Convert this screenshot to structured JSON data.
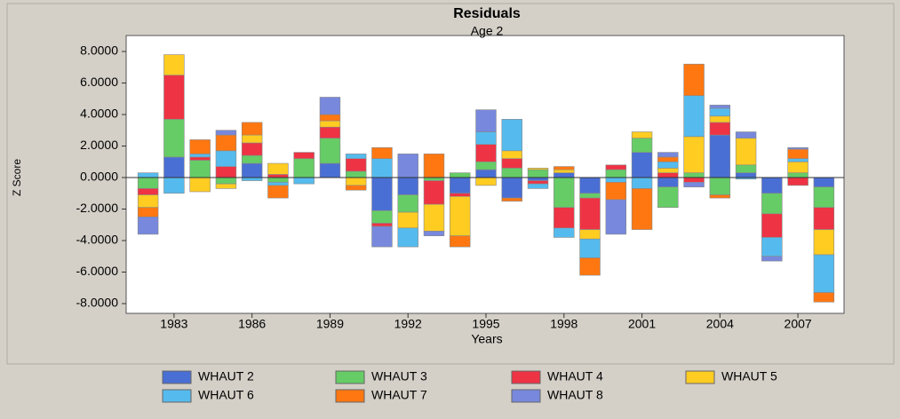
{
  "chart_data": {
    "type": "stacked-bar",
    "title": "Residuals",
    "subtitle": "Age 2",
    "x_label": "Years",
    "y_label": "Z Score",
    "categories": [
      null,
      "1983",
      null,
      null,
      "1986",
      null,
      null,
      "1989",
      null,
      null,
      "1992",
      null,
      null,
      "1995",
      null,
      null,
      "1998",
      null,
      null,
      "2001",
      null,
      null,
      "2004",
      null,
      null,
      "2007",
      null
    ],
    "series": [
      {
        "name": "WHAUT 2",
        "color": "#4a6fd4",
        "values": [
          0,
          1.3,
          0,
          0,
          0.9,
          0,
          0,
          0.9,
          0,
          -2.1,
          -1.1,
          0,
          -1.0,
          0.5,
          -1.3,
          -0.2,
          0.3,
          -1.0,
          0,
          1.6,
          -0.6,
          0,
          2.7,
          0.3,
          -1.0,
          0,
          -0.6
        ]
      },
      {
        "name": "WHAUT 3",
        "color": "#66cc66",
        "values": [
          -0.7,
          2.4,
          1.1,
          -0.4,
          0.5,
          -0.3,
          1.2,
          1.6,
          0.4,
          -0.8,
          -1.1,
          -0.2,
          0.3,
          0.5,
          0.6,
          0.5,
          -1.9,
          -0.3,
          0.5,
          0.9,
          -1.3,
          0.3,
          -1.1,
          0.5,
          -1.3,
          0.3,
          -1.3
        ]
      },
      {
        "name": "WHAUT 4",
        "color": "#ee3344",
        "values": [
          -0.4,
          2.8,
          0.2,
          0.7,
          0.8,
          0.2,
          0.4,
          0.7,
          0.8,
          -0.2,
          0,
          -1.5,
          -0.2,
          1.1,
          0.6,
          -0.2,
          -1.3,
          -2.0,
          0.3,
          0,
          0.3,
          -0.3,
          0.8,
          0,
          -1.5,
          -0.5,
          -1.4
        ]
      },
      {
        "name": "WHAUT 5",
        "color": "#ffcc22",
        "values": [
          -0.8,
          1.3,
          -0.9,
          -0.3,
          0.5,
          0.7,
          0,
          0.4,
          -0.5,
          0,
          -1.0,
          -1.7,
          -2.5,
          -0.5,
          0.5,
          0.1,
          0.2,
          -0.6,
          0,
          0.4,
          0.3,
          2.3,
          0.4,
          1.7,
          0,
          0.7,
          -1.6
        ]
      },
      {
        "name": "WHAUT 6",
        "color": "#55bbee",
        "values": [
          0.3,
          -1.0,
          0.2,
          1.0,
          -0.2,
          -0.2,
          -0.4,
          0,
          0.3,
          1.2,
          -1.2,
          0,
          0,
          0.8,
          2.0,
          -0.3,
          -0.6,
          -1.2,
          -0.3,
          -0.7,
          0.4,
          2.6,
          0.5,
          -0.1,
          -1.2,
          0.2,
          -2.4
        ]
      },
      {
        "name": "WHAUT 7",
        "color": "#ff7711",
        "values": [
          -0.6,
          0,
          0.9,
          1.0,
          0.8,
          -0.8,
          0,
          0.4,
          -0.3,
          0.7,
          0,
          1.5,
          -0.7,
          0,
          -0.2,
          0,
          0.2,
          -1.1,
          -1.1,
          -2.6,
          0.3,
          2.0,
          -0.2,
          0,
          0,
          0.6,
          -0.6
        ]
      },
      {
        "name": "WHAUT 8",
        "color": "#7788dd",
        "values": [
          -1.1,
          0,
          0,
          0.3,
          0,
          0,
          0,
          1.1,
          0,
          -1.3,
          1.5,
          -0.3,
          0,
          1.4,
          0,
          0,
          0,
          0,
          -2.2,
          0,
          0.3,
          -0.3,
          0.2,
          0.4,
          -0.3,
          0.1,
          0
        ]
      }
    ],
    "ylim": [
      -9,
      9
    ],
    "yticks": [
      {
        "value": -8,
        "label": "-8.0000"
      },
      {
        "value": -6,
        "label": "-6.0000"
      },
      {
        "value": -4,
        "label": "-4.0000"
      },
      {
        "value": -2,
        "label": "-2.0000"
      },
      {
        "value": 0,
        "label": "0.0000"
      },
      {
        "value": 2,
        "label": "2.0000"
      },
      {
        "value": 4,
        "label": "4.0000"
      },
      {
        "value": 6,
        "label": "6.0000"
      },
      {
        "value": 8,
        "label": "8.0000"
      }
    ],
    "grid": false
  }
}
